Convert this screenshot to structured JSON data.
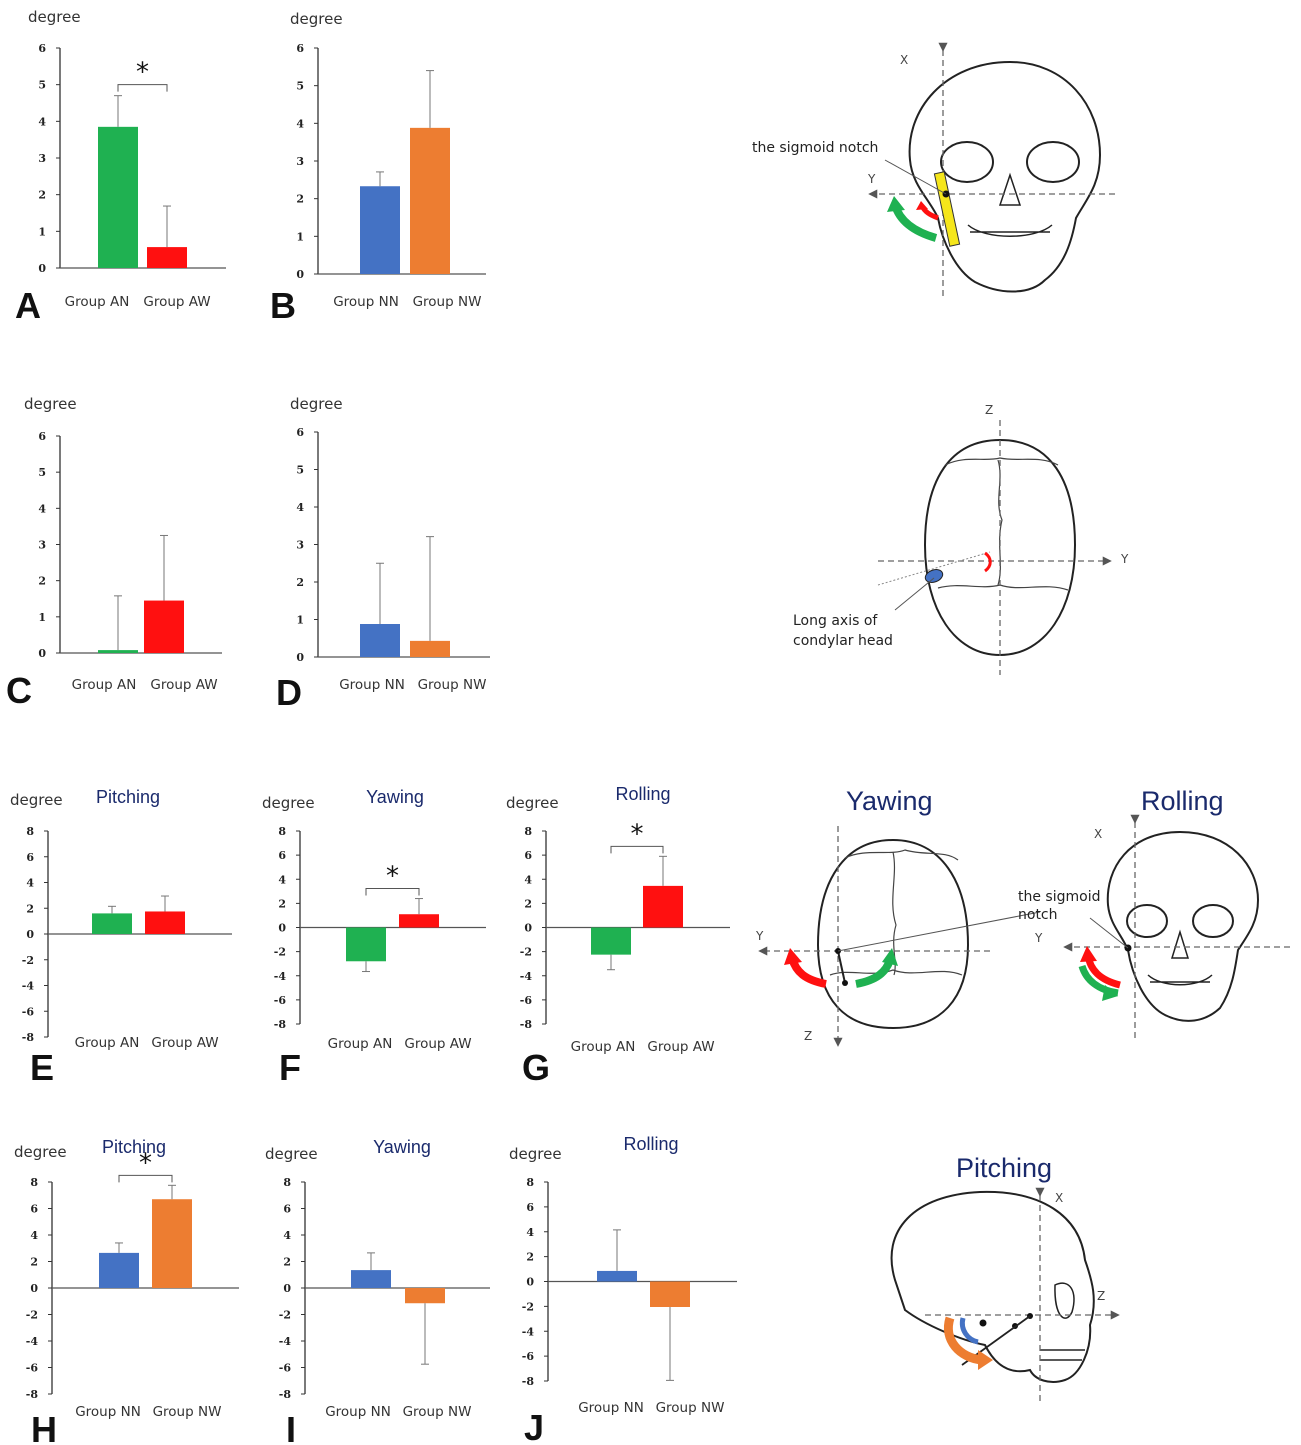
{
  "colors": {
    "green": "#1fb151",
    "red": "#ff1010",
    "blue": "#4472c4",
    "orange": "#ed7d31",
    "title_navy": "#1a2a6c",
    "highlight_yellow": "#f5e61b"
  },
  "chart_data": [
    {
      "id": "A",
      "type": "bar",
      "ylabel": "degree",
      "ylim": [
        0,
        6
      ],
      "yticks": [
        0,
        1,
        2,
        3,
        4,
        5,
        6
      ],
      "categories": [
        "Group AN",
        "Group AW"
      ],
      "values": [
        3.85,
        0.57
      ],
      "errors": [
        0.85,
        1.12
      ],
      "colors": [
        "#1fb151",
        "#ff1010"
      ],
      "panel_label": "A",
      "significance": "*",
      "title": ""
    },
    {
      "id": "B",
      "type": "bar",
      "ylabel": "degree",
      "ylim": [
        0,
        6
      ],
      "yticks": [
        0,
        1,
        2,
        3,
        4,
        5,
        6
      ],
      "categories": [
        "Group NN",
        "Group NW"
      ],
      "values": [
        2.33,
        3.88
      ],
      "errors": [
        0.38,
        1.52
      ],
      "colors": [
        "#4472c4",
        "#ed7d31"
      ],
      "panel_label": "B",
      "significance": "",
      "title": ""
    },
    {
      "id": "C",
      "type": "bar",
      "ylabel": "degree",
      "ylim": [
        0,
        6
      ],
      "yticks": [
        0,
        1,
        2,
        3,
        4,
        5,
        6
      ],
      "categories": [
        "Group AN",
        "Group AW"
      ],
      "values": [
        0.08,
        1.45
      ],
      "errors": [
        1.5,
        1.8
      ],
      "colors": [
        "#1fb151",
        "#ff1010"
      ],
      "panel_label": "C",
      "significance": "",
      "title": ""
    },
    {
      "id": "D",
      "type": "bar",
      "ylabel": "degree",
      "ylim": [
        0,
        6
      ],
      "yticks": [
        0,
        1,
        2,
        3,
        4,
        5,
        6
      ],
      "categories": [
        "Group NN",
        "Group NW"
      ],
      "values": [
        0.88,
        0.43
      ],
      "errors": [
        1.62,
        2.78
      ],
      "colors": [
        "#4472c4",
        "#ed7d31"
      ],
      "panel_label": "D",
      "significance": "",
      "title": ""
    },
    {
      "id": "E",
      "type": "bar",
      "ylabel": "degree",
      "ylim": [
        -8,
        8
      ],
      "yticks": [
        8,
        6,
        4,
        2,
        0,
        -2,
        -4,
        -6,
        -8
      ],
      "categories": [
        "Group AN",
        "Group AW"
      ],
      "values": [
        1.6,
        1.75
      ],
      "errors": [
        0.55,
        1.2
      ],
      "colors": [
        "#1fb151",
        "#ff1010"
      ],
      "panel_label": "E",
      "significance": "",
      "title": "Pitching"
    },
    {
      "id": "F",
      "type": "bar",
      "ylabel": "degree",
      "ylim": [
        -8,
        8
      ],
      "yticks": [
        8,
        6,
        4,
        2,
        0,
        -2,
        -4,
        -6,
        -8
      ],
      "categories": [
        "Group AN",
        "Group AW"
      ],
      "values": [
        -2.8,
        1.1
      ],
      "errors": [
        0.85,
        1.3
      ],
      "colors": [
        "#1fb151",
        "#ff1010"
      ],
      "panel_label": "F",
      "significance": "*",
      "title": "Yawing"
    },
    {
      "id": "G",
      "type": "bar",
      "ylabel": "degree",
      "ylim": [
        -8,
        8
      ],
      "yticks": [
        8,
        6,
        4,
        2,
        0,
        -2,
        -4,
        -6,
        -8
      ],
      "categories": [
        "Group AN",
        "Group AW"
      ],
      "values": [
        -2.25,
        3.45
      ],
      "errors": [
        1.25,
        2.45
      ],
      "colors": [
        "#1fb151",
        "#ff1010"
      ],
      "panel_label": "G",
      "significance": "*",
      "title": "Rolling"
    },
    {
      "id": "H",
      "type": "bar",
      "ylabel": "degree",
      "ylim": [
        -8,
        8
      ],
      "yticks": [
        8,
        6,
        4,
        2,
        0,
        -2,
        -4,
        -6,
        -8
      ],
      "categories": [
        "Group NN",
        "Group NW"
      ],
      "values": [
        2.65,
        6.7
      ],
      "errors": [
        0.75,
        1.05
      ],
      "colors": [
        "#4472c4",
        "#ed7d31"
      ],
      "panel_label": "H",
      "significance": "*",
      "title": "Pitching"
    },
    {
      "id": "I",
      "type": "bar",
      "ylabel": "degree",
      "ylim": [
        -8,
        8
      ],
      "yticks": [
        8,
        6,
        4,
        2,
        0,
        -2,
        -4,
        -6,
        -8
      ],
      "categories": [
        "Group NN",
        "Group NW"
      ],
      "values": [
        1.35,
        -1.15
      ],
      "errors": [
        1.3,
        4.6
      ],
      "colors": [
        "#4472c4",
        "#ed7d31"
      ],
      "panel_label": "I",
      "significance": "",
      "title": "Yawing"
    },
    {
      "id": "J",
      "type": "bar",
      "ylabel": "degree",
      "ylim": [
        -8,
        8
      ],
      "yticks": [
        8,
        6,
        4,
        2,
        0,
        -2,
        -4,
        -6,
        -8
      ],
      "categories": [
        "Group NN",
        "Group NW"
      ],
      "values": [
        0.85,
        -2.05
      ],
      "errors": [
        3.3,
        5.9
      ],
      "colors": [
        "#4472c4",
        "#ed7d31"
      ],
      "panel_label": "J",
      "significance": "",
      "title": "Rolling"
    }
  ],
  "illustrations": {
    "front_skull": {
      "axis_x": "X",
      "axis_y": "Y",
      "annotation": "the sigmoid notch"
    },
    "top_skull": {
      "axis_z": "Z",
      "axis_y": "Y",
      "annotation_line1": "Long axis of",
      "annotation_line2": "condylar head"
    },
    "yawing": {
      "title": "Yawing",
      "axis_y": "Y",
      "axis_z": "Z"
    },
    "rolling": {
      "title": "Rolling",
      "axis_x": "X",
      "axis_y": "Y",
      "annotation_line1": "the sigmoid",
      "annotation_line2": "notch"
    },
    "pitching": {
      "title": "Pitching",
      "axis_x": "X",
      "axis_z": "Z"
    }
  }
}
